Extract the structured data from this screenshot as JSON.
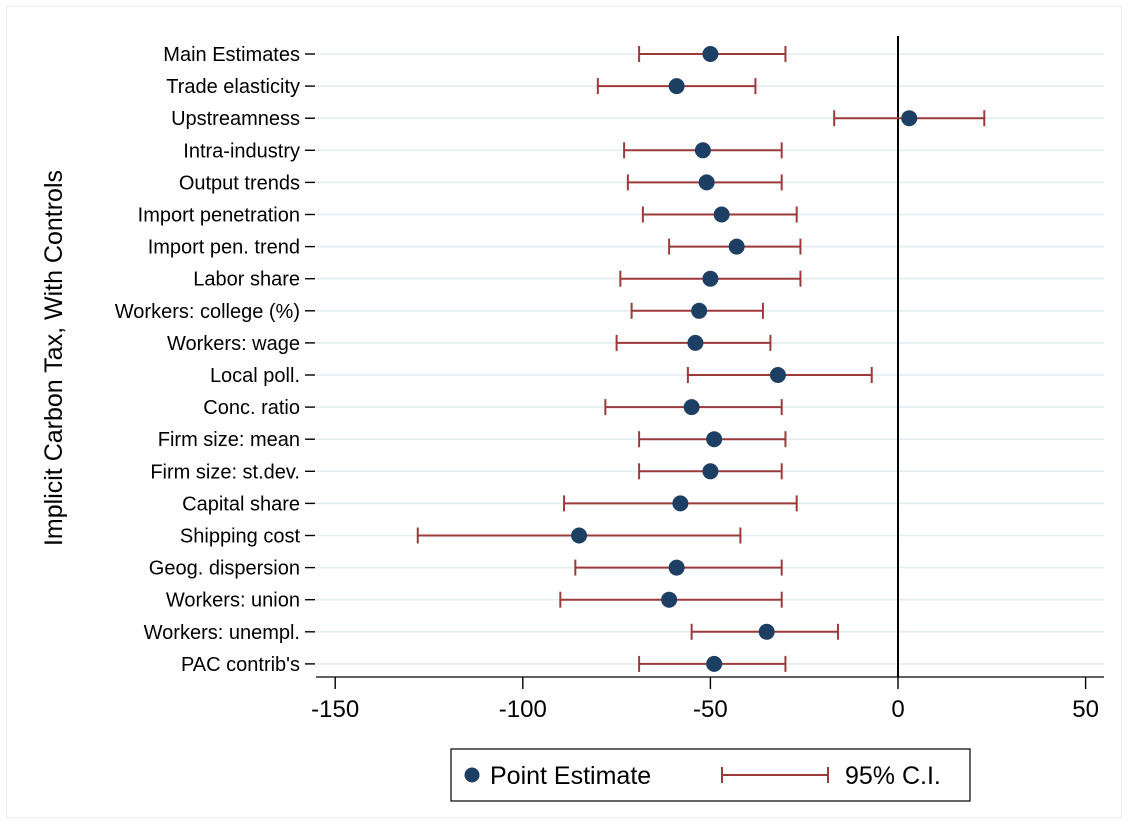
{
  "chart_data": {
    "type": "coefficient_plot",
    "ylabel": "Implicit Carbon Tax, With Controls",
    "xlim": [
      -150,
      55
    ],
    "x_ticks": [
      -150,
      -100,
      -50,
      0,
      50
    ],
    "x_tick_labels": [
      "-150",
      "-100",
      "-50",
      "0",
      "50"
    ],
    "reference_line_x": 0,
    "grid": "horizontal",
    "legend_position": "bottom",
    "legend": {
      "point_label": "Point Estimate",
      "ci_label": "95% C.I."
    },
    "series": [
      {
        "category": "Main Estimates",
        "estimate": -50,
        "ci_low": -69,
        "ci_high": -30
      },
      {
        "category": "Trade elasticity",
        "estimate": -59,
        "ci_low": -80,
        "ci_high": -38
      },
      {
        "category": "Upstreamness",
        "estimate": 3,
        "ci_low": -17,
        "ci_high": 23
      },
      {
        "category": "Intra-industry",
        "estimate": -52,
        "ci_low": -73,
        "ci_high": -31
      },
      {
        "category": "Output trends",
        "estimate": -51,
        "ci_low": -72,
        "ci_high": -31
      },
      {
        "category": "Import penetration",
        "estimate": -47,
        "ci_low": -68,
        "ci_high": -27
      },
      {
        "category": "Import pen. trend",
        "estimate": -43,
        "ci_low": -61,
        "ci_high": -26
      },
      {
        "category": "Labor share",
        "estimate": -50,
        "ci_low": -74,
        "ci_high": -26
      },
      {
        "category": "Workers: college (%)",
        "estimate": -53,
        "ci_low": -71,
        "ci_high": -36
      },
      {
        "category": "Workers: wage",
        "estimate": -54,
        "ci_low": -75,
        "ci_high": -34
      },
      {
        "category": "Local poll.",
        "estimate": -32,
        "ci_low": -56,
        "ci_high": -7
      },
      {
        "category": "Conc. ratio",
        "estimate": -55,
        "ci_low": -78,
        "ci_high": -31
      },
      {
        "category": "Firm size: mean",
        "estimate": -49,
        "ci_low": -69,
        "ci_high": -30
      },
      {
        "category": "Firm size: st.dev.",
        "estimate": -50,
        "ci_low": -69,
        "ci_high": -31
      },
      {
        "category": "Capital share",
        "estimate": -58,
        "ci_low": -89,
        "ci_high": -27
      },
      {
        "category": "Shipping cost",
        "estimate": -85,
        "ci_low": -128,
        "ci_high": -42
      },
      {
        "category": "Geog. dispersion",
        "estimate": -59,
        "ci_low": -86,
        "ci_high": -31
      },
      {
        "category": "Workers: union",
        "estimate": -61,
        "ci_low": -90,
        "ci_high": -31
      },
      {
        "category": "Workers: unempl.",
        "estimate": -35,
        "ci_low": -55,
        "ci_high": -16
      },
      {
        "category": "PAC contrib's",
        "estimate": -49,
        "ci_low": -69,
        "ci_high": -30
      }
    ]
  },
  "colors": {
    "point": "#1d3f63",
    "ci": "#9b3a3a",
    "grid": "#e3ecef",
    "axis": "#000000"
  }
}
